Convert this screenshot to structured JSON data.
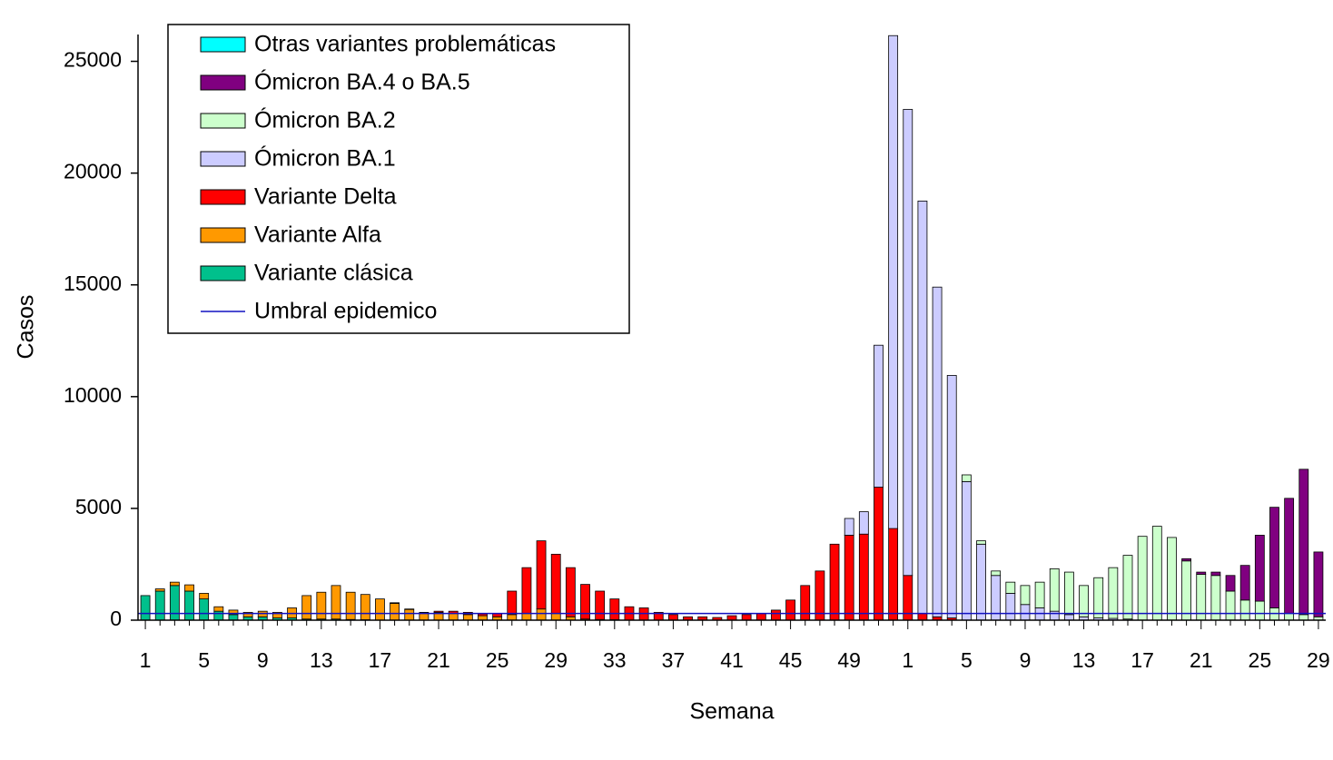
{
  "chart_data": {
    "type": "stacked-bar",
    "x_label": "Semana",
    "y_label": "Casos",
    "categories": [
      "1",
      null,
      null,
      null,
      "5",
      null,
      null,
      null,
      "9",
      null,
      null,
      null,
      "13",
      null,
      null,
      null,
      "17",
      null,
      null,
      null,
      "21",
      null,
      null,
      null,
      "25",
      null,
      null,
      null,
      "29",
      null,
      null,
      null,
      "33",
      null,
      null,
      null,
      "37",
      null,
      null,
      null,
      "41",
      null,
      null,
      null,
      "45",
      null,
      null,
      null,
      "49",
      null,
      null,
      null,
      "1",
      null,
      null,
      null,
      "5",
      null,
      null,
      null,
      "9",
      null,
      null,
      null,
      "13",
      null,
      null,
      null,
      "17",
      null,
      null,
      null,
      "21",
      null,
      null,
      null,
      "25",
      null,
      null,
      null,
      "29"
    ],
    "ylim": [
      0,
      26200
    ],
    "yticks": [
      0,
      5000,
      10000,
      15000,
      20000,
      25000
    ],
    "series": [
      {
        "name": "Variante clásica",
        "color": "#00c08c",
        "values": [
          1100,
          1300,
          1550,
          1300,
          950,
          400,
          250,
          150,
          150,
          100,
          100,
          50,
          50,
          50,
          30,
          20,
          0,
          0,
          0,
          0,
          0,
          0,
          0,
          0,
          0,
          0,
          0,
          0,
          0,
          0,
          0,
          0,
          0,
          0,
          0,
          0,
          0,
          0,
          0,
          0,
          0,
          0,
          0,
          0,
          0,
          0,
          0,
          0,
          0,
          0,
          0,
          0,
          0,
          0,
          0,
          0,
          0,
          0,
          0,
          0,
          0,
          0,
          0,
          0,
          0,
          0,
          0,
          0,
          0,
          0,
          0,
          0,
          0,
          0,
          0,
          0,
          0,
          0,
          0,
          0,
          0
        ]
      },
      {
        "name": "Variante Alfa",
        "color": "#ff9900",
        "values": [
          0,
          100,
          150,
          280,
          250,
          200,
          200,
          200,
          250,
          250,
          450,
          1050,
          1200,
          1500,
          1220,
          1130,
          950,
          750,
          480,
          320,
          350,
          300,
          250,
          200,
          150,
          250,
          300,
          500,
          300,
          150,
          50,
          30,
          20,
          0,
          0,
          0,
          0,
          0,
          0,
          0,
          0,
          0,
          0,
          0,
          0,
          0,
          0,
          0,
          0,
          0,
          0,
          0,
          0,
          0,
          0,
          0,
          0,
          0,
          0,
          0,
          0,
          0,
          0,
          0,
          0,
          0,
          0,
          0,
          0,
          0,
          0,
          0,
          0,
          0,
          0,
          0,
          0,
          0,
          0,
          0,
          0
        ]
      },
      {
        "name": "Variante Delta",
        "color": "#ff0000",
        "values": [
          0,
          0,
          0,
          0,
          0,
          0,
          0,
          0,
          0,
          0,
          0,
          0,
          0,
          0,
          0,
          0,
          0,
          30,
          20,
          30,
          50,
          100,
          100,
          80,
          150,
          1050,
          2050,
          3050,
          2650,
          2200,
          1550,
          1270,
          930,
          600,
          550,
          350,
          250,
          150,
          150,
          120,
          200,
          250,
          300,
          450,
          900,
          1550,
          2200,
          3400,
          3800,
          3850,
          5950,
          4100,
          2000,
          300,
          150,
          100,
          0,
          0,
          0,
          0,
          0,
          0,
          0,
          0,
          0,
          0,
          0,
          0,
          0,
          0,
          0,
          0,
          0,
          0,
          0,
          0,
          0,
          0,
          0,
          0,
          0
        ]
      },
      {
        "name": "Ómicron BA.1",
        "color": "#ccccff",
        "values": [
          0,
          0,
          0,
          0,
          0,
          0,
          0,
          0,
          0,
          0,
          0,
          0,
          0,
          0,
          0,
          0,
          0,
          0,
          0,
          0,
          0,
          0,
          0,
          0,
          0,
          0,
          0,
          0,
          0,
          0,
          0,
          0,
          0,
          0,
          0,
          0,
          0,
          0,
          0,
          0,
          0,
          0,
          0,
          0,
          0,
          0,
          0,
          0,
          750,
          1000,
          6350,
          22050,
          20850,
          18450,
          14750,
          10850,
          6200,
          3400,
          2000,
          1200,
          700,
          550,
          400,
          250,
          150,
          100,
          80,
          50,
          0,
          0,
          0,
          0,
          0,
          0,
          0,
          0,
          0,
          0,
          0,
          0,
          0
        ]
      },
      {
        "name": "Ómicron BA.2",
        "color": "#ccffcc",
        "values": [
          0,
          0,
          0,
          0,
          0,
          0,
          0,
          0,
          0,
          0,
          0,
          0,
          0,
          0,
          0,
          0,
          0,
          0,
          0,
          0,
          0,
          0,
          0,
          0,
          0,
          0,
          0,
          0,
          0,
          0,
          0,
          0,
          0,
          0,
          0,
          0,
          0,
          0,
          0,
          0,
          0,
          0,
          0,
          0,
          0,
          0,
          0,
          0,
          0,
          0,
          0,
          0,
          0,
          0,
          0,
          0,
          300,
          150,
          200,
          500,
          850,
          1150,
          1900,
          1900,
          1400,
          1800,
          2270,
          2850,
          3750,
          4200,
          3700,
          2650,
          2050,
          2000,
          1300,
          900,
          850,
          550,
          300,
          250,
          150
        ]
      },
      {
        "name": "Ómicron BA.4 o BA.5",
        "color": "#800080",
        "values": [
          0,
          0,
          0,
          0,
          0,
          0,
          0,
          0,
          0,
          0,
          0,
          0,
          0,
          0,
          0,
          0,
          0,
          0,
          0,
          0,
          0,
          0,
          0,
          0,
          0,
          0,
          0,
          0,
          0,
          0,
          0,
          0,
          0,
          0,
          0,
          0,
          0,
          0,
          0,
          0,
          0,
          0,
          0,
          0,
          0,
          0,
          0,
          0,
          0,
          0,
          0,
          0,
          0,
          0,
          0,
          0,
          0,
          0,
          0,
          0,
          0,
          0,
          0,
          0,
          0,
          0,
          0,
          0,
          0,
          0,
          0,
          100,
          100,
          150,
          700,
          1550,
          2950,
          4500,
          5150,
          6500,
          2900
        ]
      },
      {
        "name": "Otras variantes problemáticas",
        "color": "#00ffff",
        "values": [
          0,
          0,
          0,
          0,
          0,
          0,
          0,
          0,
          0,
          0,
          0,
          0,
          0,
          0,
          0,
          0,
          0,
          0,
          0,
          0,
          0,
          0,
          0,
          0,
          0,
          0,
          0,
          0,
          0,
          0,
          0,
          0,
          0,
          0,
          0,
          0,
          0,
          0,
          0,
          0,
          0,
          0,
          0,
          0,
          0,
          0,
          0,
          0,
          0,
          0,
          0,
          0,
          0,
          0,
          0,
          0,
          0,
          0,
          0,
          0,
          0,
          0,
          0,
          0,
          0,
          0,
          0,
          0,
          0,
          0,
          0,
          0,
          0,
          0,
          0,
          0,
          0,
          0,
          0,
          0,
          0
        ]
      }
    ],
    "threshold": {
      "name": "Umbral epidemico",
      "color": "#1010c0",
      "value": 300
    }
  }
}
